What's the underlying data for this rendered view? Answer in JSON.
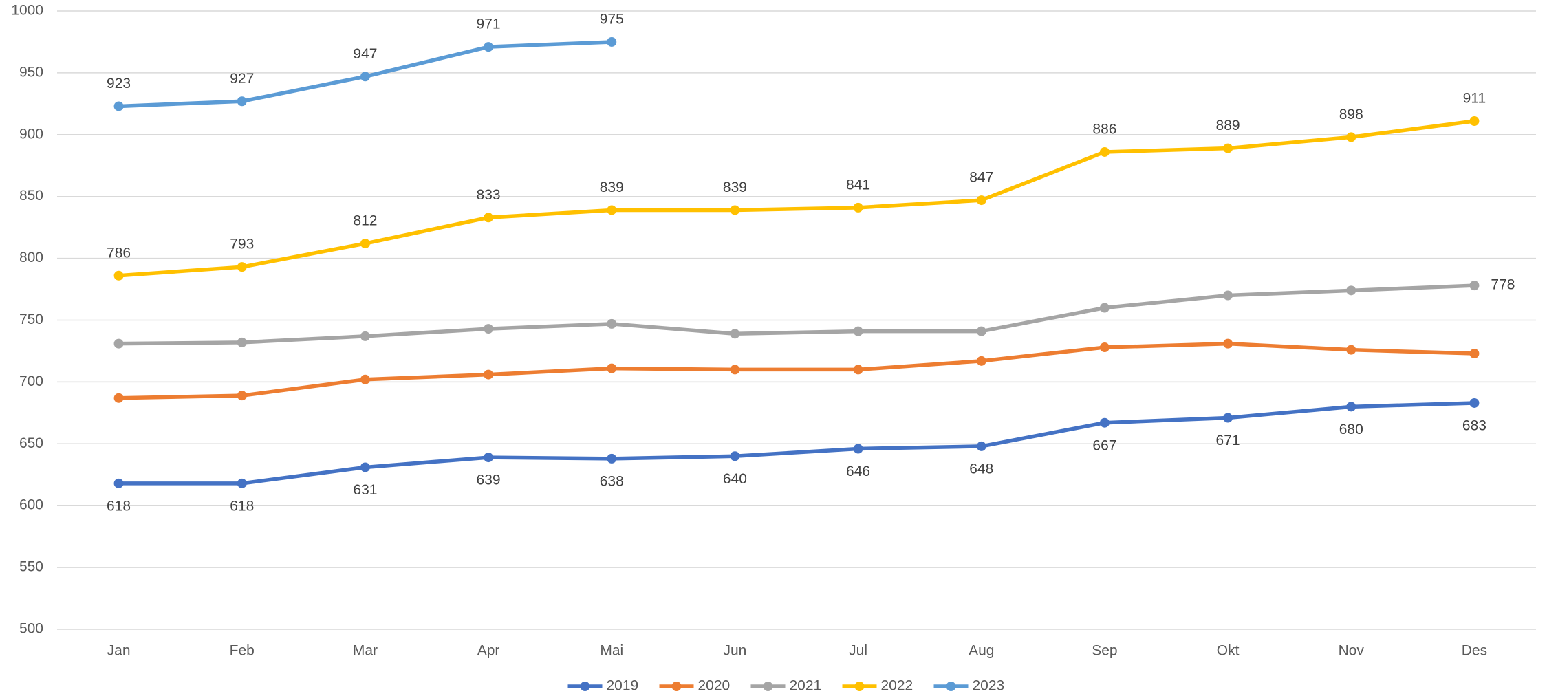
{
  "chart_data": {
    "type": "line",
    "categories": [
      "Jan",
      "Feb",
      "Mar",
      "Apr",
      "Mai",
      "Jun",
      "Jul",
      "Aug",
      "Sep",
      "Okt",
      "Nov",
      "Des"
    ],
    "series": [
      {
        "name": "2019",
        "color": "#4472c4",
        "data_labels": "below",
        "values": [
          618,
          618,
          631,
          639,
          638,
          640,
          646,
          648,
          667,
          671,
          680,
          683
        ]
      },
      {
        "name": "2020",
        "color": "#ed7d31",
        "values": [
          687,
          689,
          702,
          706,
          711,
          710,
          710,
          717,
          728,
          731,
          726,
          723
        ]
      },
      {
        "name": "2021",
        "color": "#a5a5a5",
        "data_labels": "last-right",
        "values": [
          731,
          732,
          737,
          743,
          747,
          739,
          741,
          741,
          760,
          770,
          774,
          778
        ]
      },
      {
        "name": "2022",
        "color": "#ffc000",
        "data_labels": "above",
        "values": [
          786,
          793,
          812,
          833,
          839,
          839,
          841,
          847,
          886,
          889,
          898,
          911
        ]
      },
      {
        "name": "2023",
        "color": "#5b9bd5",
        "data_labels": "above",
        "values": [
          923,
          927,
          947,
          971,
          975,
          null,
          null,
          null,
          null,
          null,
          null,
          null
        ]
      }
    ],
    "ylim": [
      500,
      1000
    ],
    "yticks": [
      500,
      550,
      600,
      650,
      700,
      750,
      800,
      850,
      900,
      950,
      1000
    ],
    "grid": true,
    "legend": "bottom"
  }
}
